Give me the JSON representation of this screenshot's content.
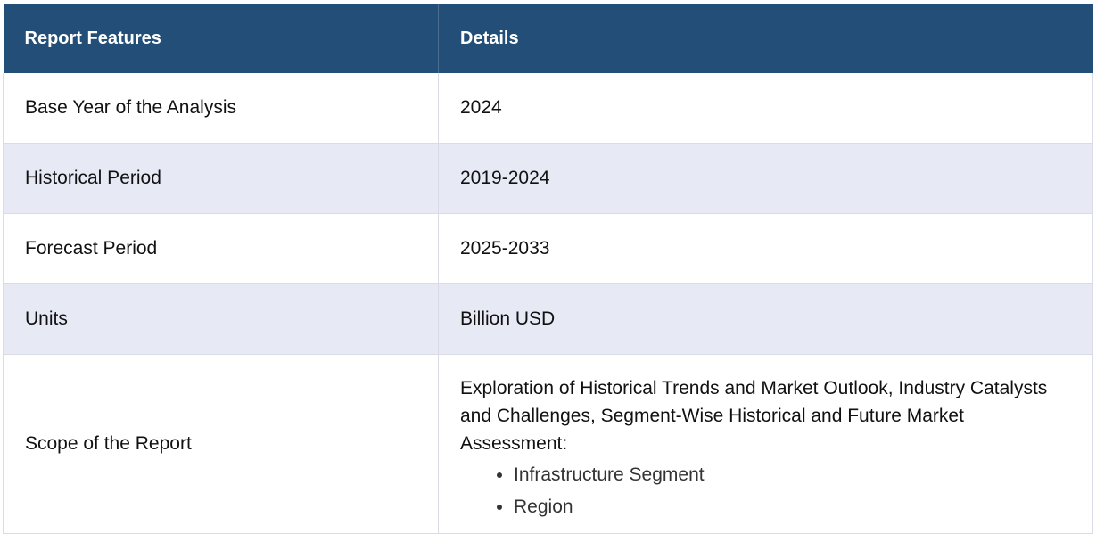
{
  "table": {
    "headers": [
      "Report Features",
      "Details"
    ],
    "rows": [
      {
        "feature": "Base Year of the Analysis",
        "detail": "2024"
      },
      {
        "feature": "Historical Period",
        "detail": "2019-2024"
      },
      {
        "feature": "Forecast Period",
        "detail": "2025-2033"
      },
      {
        "feature": "Units",
        "detail": "Billion USD"
      },
      {
        "feature": "Scope of the Report",
        "detail": "Exploration of Historical Trends and Market Outlook, Industry Catalysts and Challenges, Segment-Wise Historical and Future Market Assessment:",
        "list": [
          "Infrastructure Segment",
          "Region"
        ]
      }
    ]
  },
  "colors": {
    "header_bg": "#224e77",
    "header_text": "#ffffff",
    "shaded_row_bg": "#e7e9f5",
    "border": "#d9dbe6"
  }
}
